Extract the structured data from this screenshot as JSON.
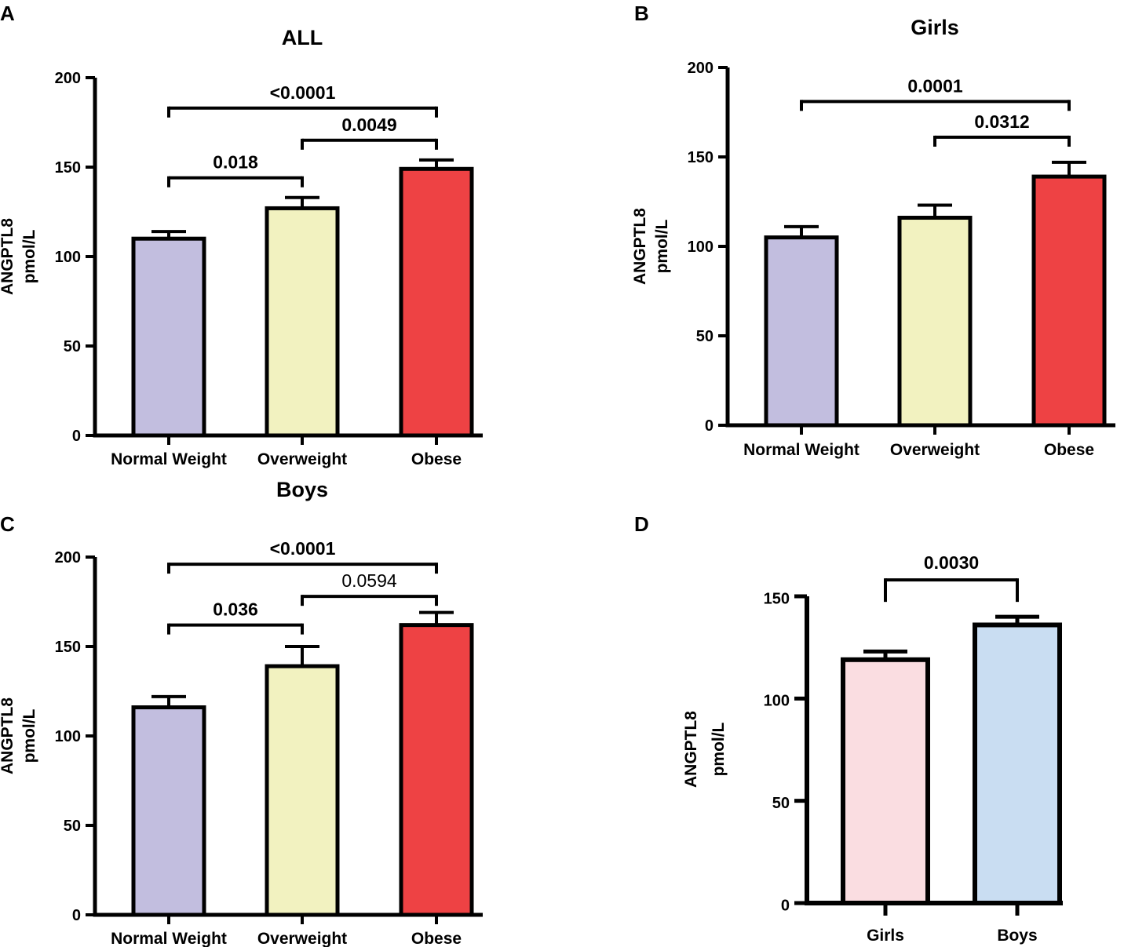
{
  "figure": {
    "aria_label": "ANGPTL8 concentration by weight category and sex"
  },
  "chart_data": [
    {
      "panel": "A",
      "type": "bar",
      "title": "ALL",
      "ylabel_line1": "ANGPTL8",
      "ylabel_line2": "pmol/L",
      "xlabel": "",
      "categories": [
        "Normal Weight",
        "Overweight",
        "Obese"
      ],
      "values": [
        110,
        127,
        149
      ],
      "error_upper": [
        4,
        6,
        5
      ],
      "colors": [
        "#c2bedf",
        "#f2f2c0",
        "#ee4244"
      ],
      "ylim": [
        0,
        200
      ],
      "yticks": [
        "0",
        "50",
        "100",
        "150",
        "200"
      ],
      "grid": false,
      "comparisons": [
        {
          "from": 0,
          "to": 2,
          "label": "<0.0001",
          "bold": true,
          "y": 183
        },
        {
          "from": 1,
          "to": 2,
          "label": "0.0049",
          "bold": true,
          "y": 165
        },
        {
          "from": 0,
          "to": 1,
          "label": "0.018",
          "bold": true,
          "y": 144
        }
      ]
    },
    {
      "panel": "B",
      "type": "bar",
      "title": "Girls",
      "ylabel_line1": "ANGPTL8",
      "ylabel_line2": "pmol/L",
      "xlabel": "",
      "categories": [
        "Normal Weight",
        "Overweight",
        "Obese"
      ],
      "values": [
        105,
        116,
        139
      ],
      "error_upper": [
        6,
        7,
        8
      ],
      "colors": [
        "#c2bedf",
        "#f2f2c0",
        "#ee4244"
      ],
      "ylim": [
        0,
        200
      ],
      "yticks": [
        "0",
        "50",
        "100",
        "150",
        "200"
      ],
      "grid": false,
      "comparisons": [
        {
          "from": 0,
          "to": 2,
          "label": "0.0001",
          "bold": true,
          "y": 181
        },
        {
          "from": 1,
          "to": 2,
          "label": "0.0312",
          "bold": true,
          "y": 161
        }
      ]
    },
    {
      "panel": "C",
      "type": "bar",
      "title": "Boys",
      "ylabel_line1": "ANGPTL8",
      "ylabel_line2": "pmol/L",
      "xlabel": "",
      "categories": [
        "Normal Weight",
        "Overweight",
        "Obese"
      ],
      "values": [
        116,
        139,
        162
      ],
      "error_upper": [
        6,
        11,
        7
      ],
      "colors": [
        "#c2bedf",
        "#f2f2c0",
        "#ee4244"
      ],
      "ylim": [
        0,
        200
      ],
      "yticks": [
        "0",
        "50",
        "100",
        "150",
        "200"
      ],
      "grid": false,
      "comparisons": [
        {
          "from": 0,
          "to": 2,
          "label": "<0.0001",
          "bold": true,
          "y": 196
        },
        {
          "from": 1,
          "to": 2,
          "label": "0.0594",
          "bold": false,
          "y": 178
        },
        {
          "from": 0,
          "to": 1,
          "label": "0.036",
          "bold": true,
          "y": 162
        }
      ]
    },
    {
      "panel": "D",
      "type": "bar",
      "title": "",
      "ylabel_line1": "ANGPTL8",
      "ylabel_line2": "pmol/L",
      "xlabel": "",
      "categories": [
        "Girls",
        "Boys"
      ],
      "values": [
        119,
        136
      ],
      "error_upper": [
        4,
        4
      ],
      "colors": [
        "#fadde1",
        "#c9ddf2"
      ],
      "ylim": [
        0,
        150
      ],
      "yticks": [
        "0",
        "50",
        "100",
        "150"
      ],
      "grid": false,
      "comparisons": [
        {
          "from": 0,
          "to": 1,
          "label": "0.0030",
          "bold": true,
          "y": 158
        }
      ]
    }
  ]
}
